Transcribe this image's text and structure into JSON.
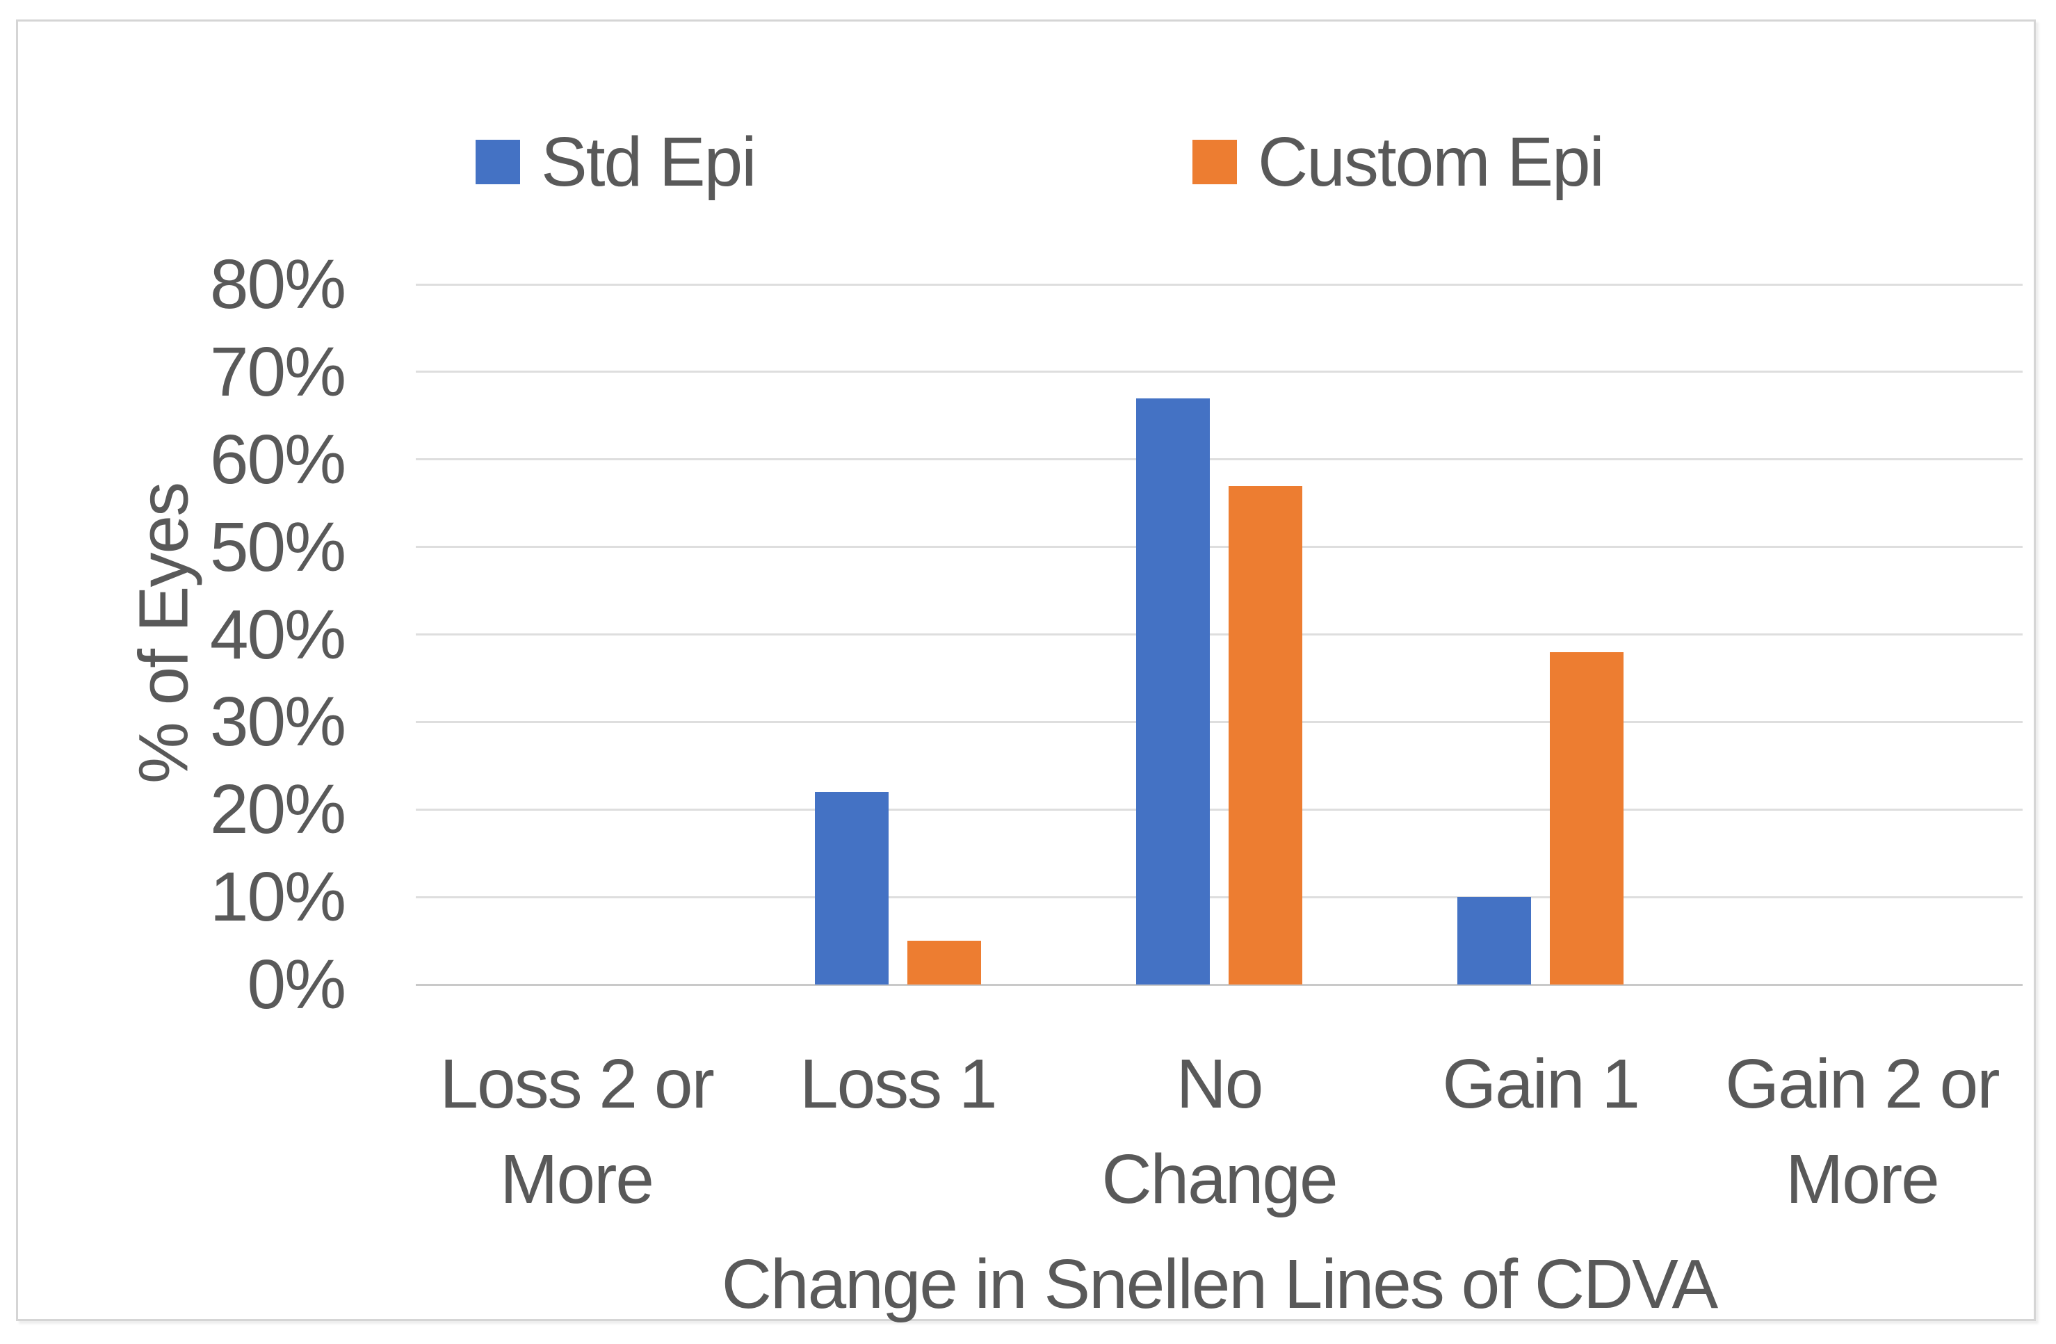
{
  "chart_data": {
    "type": "bar",
    "title": "",
    "categories": [
      "Loss 2 or More",
      "Loss 1",
      "No Change",
      "Gain 1",
      "Gain 2 or More"
    ],
    "category_display": [
      "Loss 2 or\nMore",
      "Loss 1",
      "No\nChange",
      "Gain 1",
      "Gain 2 or\nMore"
    ],
    "series": [
      {
        "name": "Std Epi",
        "color": "#4472C4",
        "values": [
          0,
          22,
          67,
          10,
          0
        ]
      },
      {
        "name": "Custom Epi",
        "color": "#ED7D31",
        "values": [
          0,
          5,
          57,
          38,
          0
        ]
      }
    ],
    "xlabel": "Change in Snellen Lines of CDVA",
    "ylabel": "% of Eyes",
    "ylim": [
      0,
      80
    ],
    "yticks": [
      {
        "value": 0,
        "label": "0%"
      },
      {
        "value": 10,
        "label": "10%"
      },
      {
        "value": 20,
        "label": "20%"
      },
      {
        "value": 30,
        "label": "30%"
      },
      {
        "value": 40,
        "label": "40%"
      },
      {
        "value": 50,
        "label": "50%"
      },
      {
        "value": 60,
        "label": "60%"
      },
      {
        "value": 70,
        "label": "70%"
      },
      {
        "value": 80,
        "label": "80%"
      }
    ],
    "grid": true,
    "legend_position": "top"
  },
  "colors": {
    "std_epi": "#4472C4",
    "custom_epi": "#ED7D31",
    "text": "#595959",
    "gridline": "#dedede",
    "axis_line": "#c9c9c9",
    "frame_border": "#d5d5d5",
    "background": "#FFFFFF"
  }
}
